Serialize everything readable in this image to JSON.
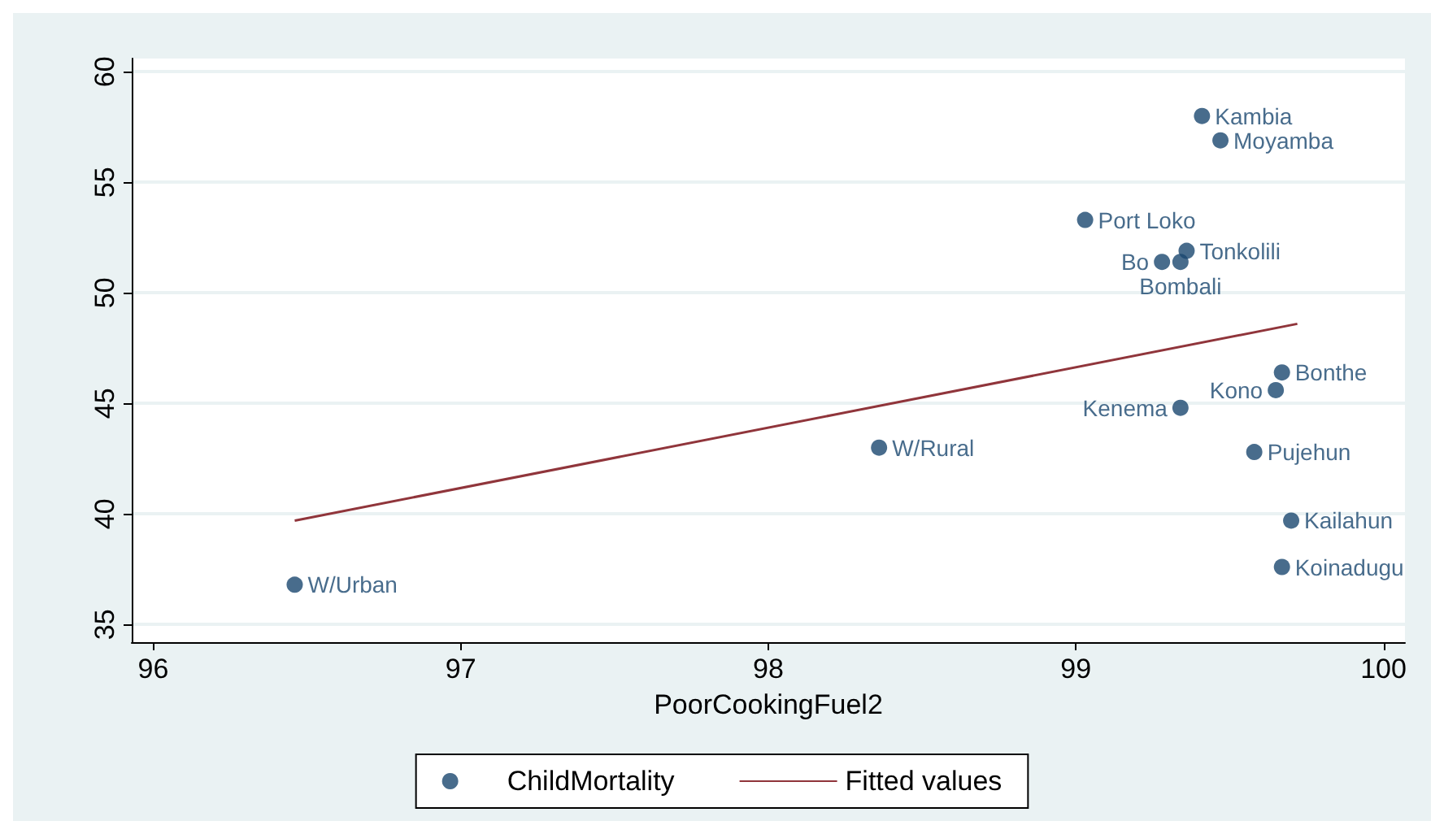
{
  "chart_data": {
    "type": "scatter",
    "xlabel": "PoorCookingFuel2",
    "xlim": [
      95.93,
      100.07
    ],
    "ylim": [
      34.2,
      60.6
    ],
    "xticks": [
      96,
      97,
      98,
      99,
      100
    ],
    "yticks": [
      35,
      40,
      45,
      50,
      55,
      60
    ],
    "grid": "y",
    "legend": "bottom",
    "marker": "circle",
    "series": [
      {
        "name": "ChildMortality",
        "type": "scatter",
        "color": "#1a476f",
        "x": [
          96.46,
          98.36,
          99.03,
          99.41,
          99.47,
          99.36,
          99.28,
          99.34,
          99.67,
          99.65,
          99.34,
          99.58,
          99.7,
          99.67
        ],
        "values": [
          36.8,
          43.0,
          53.3,
          58.0,
          56.9,
          51.9,
          51.4,
          51.4,
          46.4,
          45.6,
          44.8,
          42.8,
          39.7,
          37.6
        ],
        "value_labels": [
          "W/Urban",
          "W/Rural",
          "Port Loko",
          "Kambia",
          "Moyamba",
          "Tonkolili",
          "Bo",
          "Bombali",
          "Bonthe",
          "Kono",
          "Kenema",
          "Pujehun",
          "Kailahun",
          "Koinadugu"
        ]
      },
      {
        "name": "Fitted values",
        "type": "line",
        "color": "#90353b",
        "x": [
          96.46,
          99.72
        ],
        "values": [
          39.7,
          48.6
        ],
        "marker": "none",
        "line_style": "solid"
      }
    ]
  }
}
